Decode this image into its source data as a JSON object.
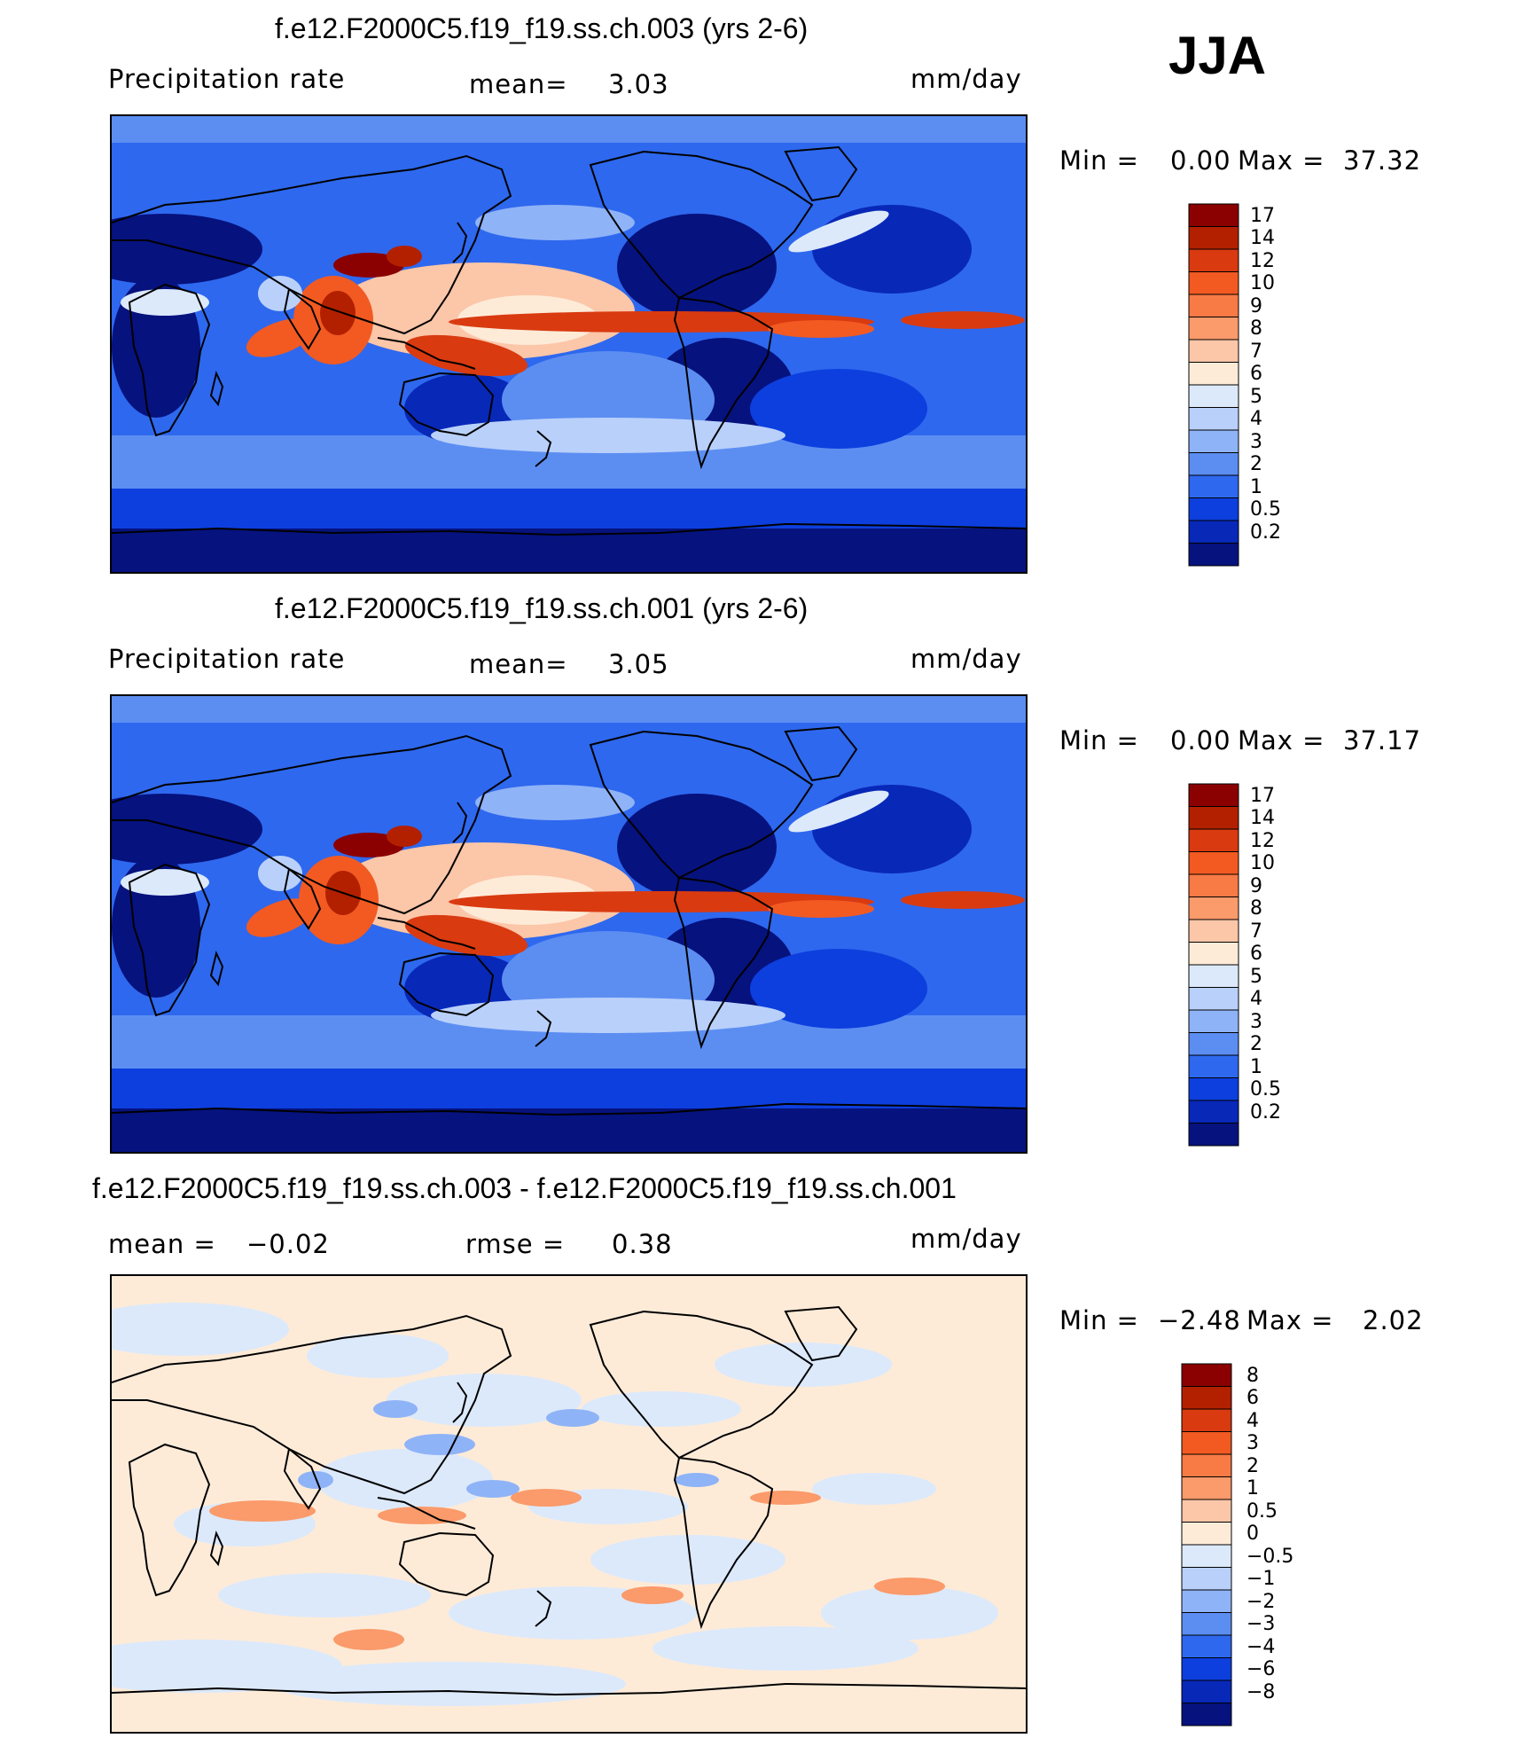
{
  "season": "JJA",
  "panels": [
    {
      "title": "f.e12.F2000C5.f19_f19.ss.ch.003 (yrs 2-6)",
      "left_label": "Precipitation rate",
      "stat1_label": "mean=",
      "stat1_value": "3.03",
      "units": "mm/day",
      "min_label": "Min =",
      "min_value": "0.00",
      "max_label": "Max =",
      "max_value": "37.32",
      "levels": [
        "17",
        "14",
        "12",
        "10",
        "9",
        "8",
        "7",
        "6",
        "5",
        "4",
        "3",
        "2",
        "1",
        "0.5",
        "0.2"
      ],
      "colors": [
        "#8b0000",
        "#b32000",
        "#d93a10",
        "#f25a22",
        "#f87a45",
        "#fb9a6a",
        "#fcc6a8",
        "#fdebd8",
        "#dce9fb",
        "#b9d0fa",
        "#8fb3f7",
        "#5c8ef2",
        "#2e68ee",
        "#0d3fde",
        "#0828b8",
        "#06127e"
      ]
    },
    {
      "title": "f.e12.F2000C5.f19_f19.ss.ch.001 (yrs 2-6)",
      "left_label": "Precipitation rate",
      "stat1_label": "mean=",
      "stat1_value": "3.05",
      "units": "mm/day",
      "min_label": "Min =",
      "min_value": "0.00",
      "max_label": "Max =",
      "max_value": "37.17",
      "levels": [
        "17",
        "14",
        "12",
        "10",
        "9",
        "8",
        "7",
        "6",
        "5",
        "4",
        "3",
        "2",
        "1",
        "0.5",
        "0.2"
      ],
      "colors": [
        "#8b0000",
        "#b32000",
        "#d93a10",
        "#f25a22",
        "#f87a45",
        "#fb9a6a",
        "#fcc6a8",
        "#fdebd8",
        "#dce9fb",
        "#b9d0fa",
        "#8fb3f7",
        "#5c8ef2",
        "#2e68ee",
        "#0d3fde",
        "#0828b8",
        "#06127e"
      ]
    },
    {
      "title": "f.e12.F2000C5.f19_f19.ss.ch.003 - f.e12.F2000C5.f19_f19.ss.ch.001",
      "left_label": "mean =",
      "left_value": "−0.02",
      "stat1_label": "rmse =",
      "stat1_value": "0.38",
      "units": "mm/day",
      "min_label": "Min =",
      "min_value": "−2.48",
      "max_label": "Max =",
      "max_value": "2.02",
      "levels": [
        "8",
        "6",
        "4",
        "3",
        "2",
        "1",
        "0.5",
        "0",
        "−0.5",
        "−1",
        "−2",
        "−3",
        "−4",
        "−6",
        "−8"
      ],
      "colors": [
        "#8b0000",
        "#b32000",
        "#d93a10",
        "#f25a22",
        "#f87a45",
        "#fb9a6a",
        "#fcc6a8",
        "#fdebd8",
        "#dce9fb",
        "#b9d0fa",
        "#8fb3f7",
        "#5c8ef2",
        "#2e68ee",
        "#0d3fde",
        "#0828b8",
        "#06127e"
      ]
    }
  ]
}
